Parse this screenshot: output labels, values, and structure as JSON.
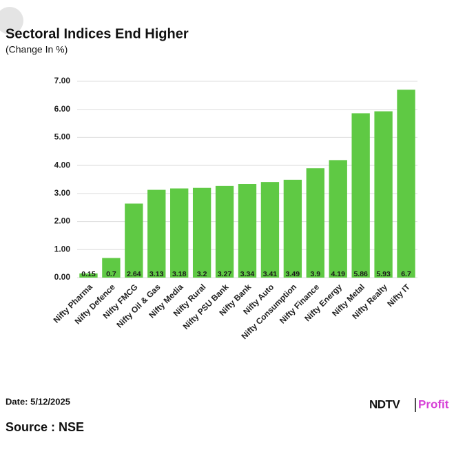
{
  "chart_data": {
    "type": "bar",
    "title": "Sectoral Indices End Higher",
    "subtitle": "(Change In %)",
    "categories": [
      "Nifty Pharma",
      "Nifty Defence",
      "Nifty FMCG",
      "Nifty Oil & Gas",
      "Nifty Media",
      "Nifty Rural",
      "Nifty PSU Bank",
      "Nifty Bank",
      "Nifty Auto",
      "Nifty Consumption",
      "Nifty Finance",
      "Nifty Energy",
      "Nifty Metal",
      "Nifty Realty",
      "Nifty IT"
    ],
    "values": [
      0.15,
      0.7,
      2.64,
      3.13,
      3.18,
      3.2,
      3.27,
      3.34,
      3.41,
      3.49,
      3.9,
      4.19,
      5.86,
      5.93,
      6.7
    ],
    "color": "#5fc944",
    "ylim": [
      0,
      7
    ],
    "yticks": [
      {
        "value": 0,
        "label": "0.00"
      },
      {
        "value": 1,
        "label": "1.00"
      },
      {
        "value": 2,
        "label": "2.00"
      },
      {
        "value": 3,
        "label": "3.00"
      },
      {
        "value": 4,
        "label": "4.00"
      },
      {
        "value": 5,
        "label": "5.00"
      },
      {
        "value": 6,
        "label": "6.00"
      },
      {
        "value": 7,
        "label": "7.00"
      }
    ],
    "grid": true
  },
  "footer": {
    "date": "Date: 5/12/2025",
    "source": "Source : NSE",
    "logo_left": "NDTV",
    "logo_right": "Profit"
  }
}
